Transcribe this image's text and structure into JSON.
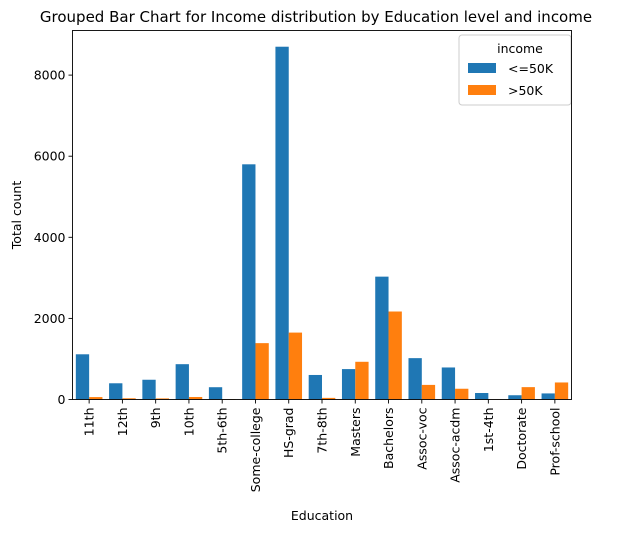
{
  "chart_data": {
    "type": "bar",
    "title": "Grouped Bar Chart for Income distribution by Education level and income",
    "xlabel": "Education",
    "ylabel": "Total count",
    "ylim": [
      0,
      9100
    ],
    "yticks": [
      0,
      2000,
      4000,
      6000,
      8000
    ],
    "categories": [
      "11th",
      "12th",
      "9th",
      "10th",
      "5th-6th",
      "Some-college",
      "HS-grad",
      "7th-8th",
      "Masters",
      "Bachelors",
      "Assoc-voc",
      "Assoc-acdm",
      "1st-4th",
      "Doctorate",
      "Prof-school"
    ],
    "legend": {
      "title": "income",
      "position": "top-right"
    },
    "series": [
      {
        "name": "<=50K",
        "color": "#1f77b4",
        "values": [
          1115,
          400,
          487,
          871,
          303,
          5800,
          8700,
          605,
          750,
          3030,
          1020,
          790,
          160,
          105,
          150
        ]
      },
      {
        "name": ">50K",
        "color": "#ff7f0e",
        "values": [
          60,
          30,
          27,
          62,
          12,
          1390,
          1650,
          40,
          930,
          2170,
          360,
          265,
          5,
          305,
          420
        ]
      }
    ],
    "grid": false
  }
}
